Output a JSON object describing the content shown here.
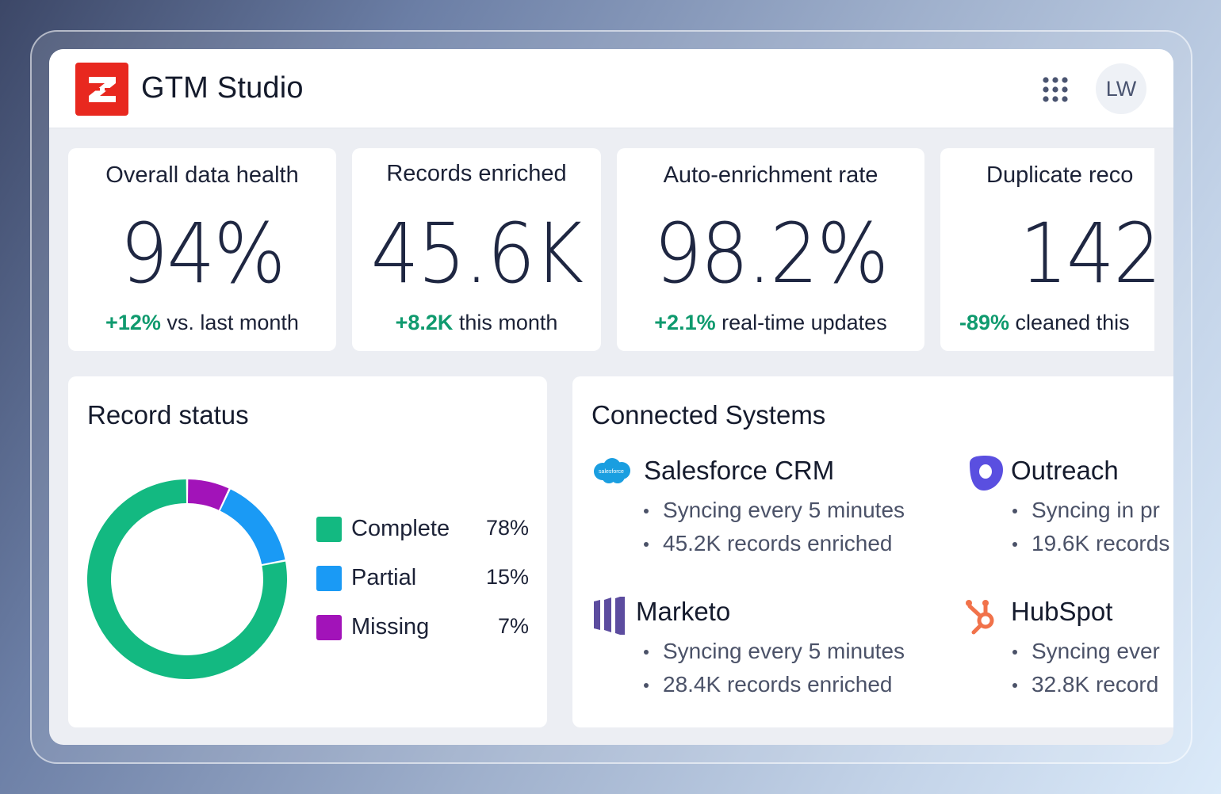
{
  "header": {
    "app_title": "GTM Studio",
    "logo_icon": "zoominfo-z-logo",
    "apps_icon": "apps-grid-icon",
    "avatar_initials": "LW"
  },
  "kpis": [
    {
      "label": "Overall data health",
      "value": "94%",
      "delta": "+12%",
      "delta_text": " vs. last month"
    },
    {
      "label": "Records enriched",
      "value": "45.6K",
      "delta": "+8.2K",
      "delta_text": " this month"
    },
    {
      "label": "Auto-enrichment rate",
      "value": "98.2%",
      "delta": "+2.1%",
      "delta_text": " real-time updates"
    },
    {
      "label": "Duplicate reco",
      "value": "142",
      "delta": "-89%",
      "delta_text": " cleaned this"
    }
  ],
  "record_status": {
    "title": "Record status",
    "chart_data": {
      "type": "pie",
      "donut": true,
      "categories": [
        "Complete",
        "Partial",
        "Missing"
      ],
      "values": [
        78,
        15,
        7
      ],
      "colors": [
        "#13b981",
        "#1a9af5",
        "#a213b9"
      ]
    },
    "legend": [
      {
        "label": "Complete",
        "pct": "78%"
      },
      {
        "label": "Partial",
        "pct": "15%"
      },
      {
        "label": "Missing",
        "pct": "7%"
      }
    ]
  },
  "connected_systems": {
    "title": "Connected Systems",
    "systems": [
      {
        "name": "Salesforce CRM",
        "icon": "salesforce-icon",
        "icon_text": "salesforce",
        "bullets": [
          "Syncing every 5 minutes",
          "45.2K records enriched"
        ]
      },
      {
        "name": "Outreach",
        "icon": "outreach-icon",
        "bullets": [
          "Syncing in pr",
          "19.6K records"
        ]
      },
      {
        "name": "Marketo",
        "icon": "marketo-icon",
        "bullets": [
          "Syncing every 5 minutes",
          "28.4K records enriched"
        ]
      },
      {
        "name": "HubSpot",
        "icon": "hubspot-icon",
        "bullets": [
          "Syncing ever",
          "32.8K record"
        ]
      }
    ]
  },
  "colors": {
    "accent_positive": "#0f9a6e",
    "brand_red": "#e8281f"
  }
}
